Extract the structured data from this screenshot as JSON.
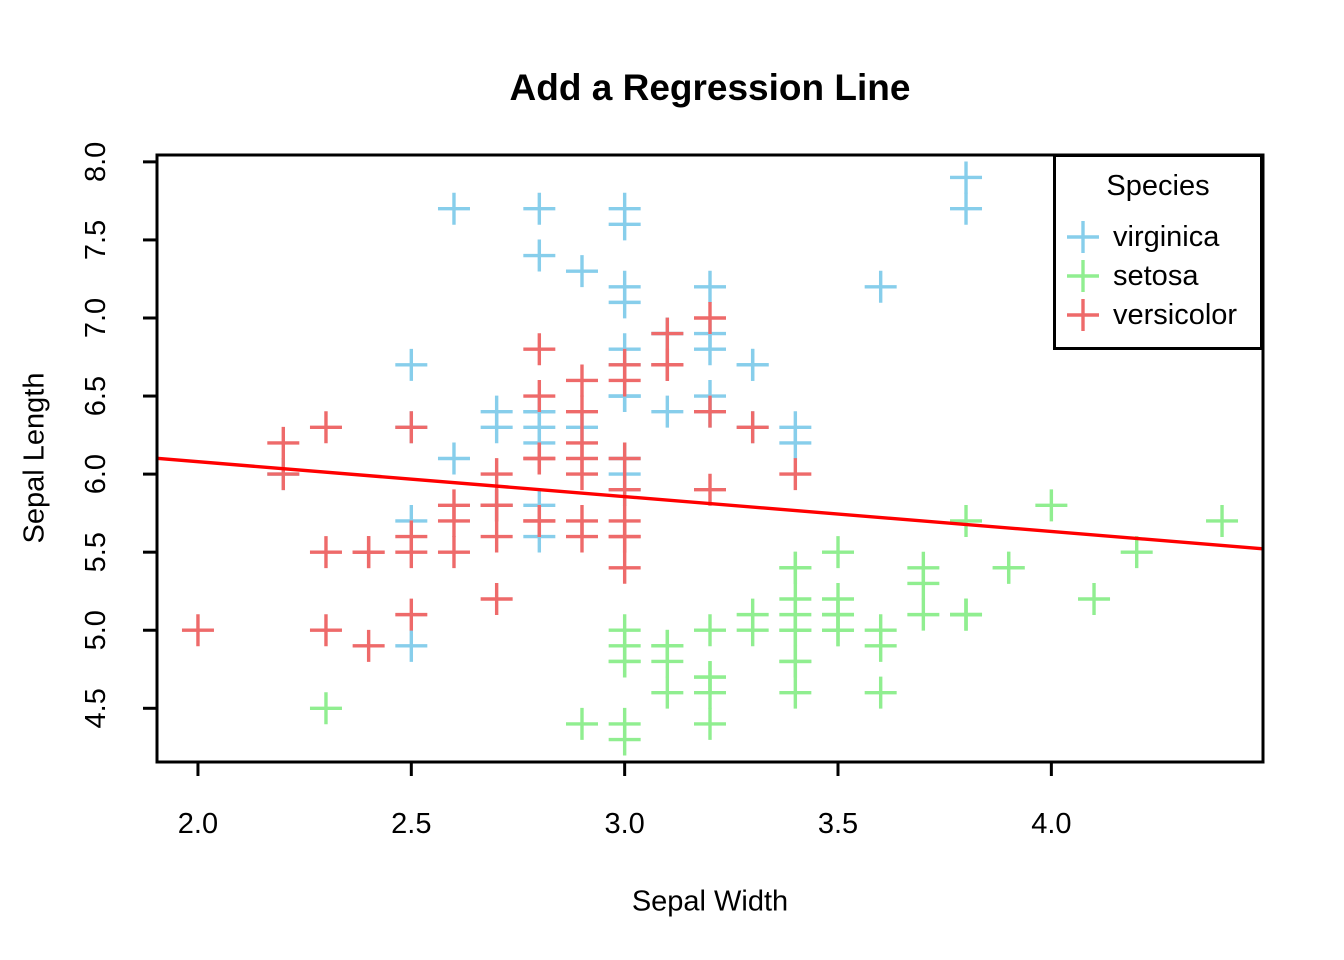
{
  "figure": {
    "title": "Add a Regression Line",
    "x_axis_label": "Sepal Width",
    "y_axis_label": "Sepal Length"
  },
  "colors": {
    "virginica": "#87CEEB",
    "setosa": "#90EE90",
    "versicolor": "#EE6A6A",
    "regression_line": "#FF0000",
    "axis": "#000000",
    "background": "#FFFFFF"
  },
  "legend": {
    "title": "Species",
    "position": "topright",
    "items": [
      {
        "label": "virginica",
        "marker": "plus",
        "color": "#87CEEB"
      },
      {
        "label": "setosa",
        "marker": "plus",
        "color": "#90EE90"
      },
      {
        "label": "versicolor",
        "marker": "plus",
        "color": "#EE6A6A"
      }
    ]
  },
  "chart_data": {
    "type": "scatter",
    "title": "Add a Regression Line",
    "xlabel": "Sepal Width",
    "ylabel": "Sepal Length",
    "xlim": [
      1.904,
      4.496
    ],
    "ylim": [
      4.156,
      8.044
    ],
    "x_ticks": [
      2.0,
      2.5,
      3.0,
      3.5,
      4.0
    ],
    "x_tick_labels": [
      "2.0",
      "2.5",
      "3.0",
      "3.5",
      "4.0"
    ],
    "y_ticks": [
      4.5,
      5.0,
      5.5,
      6.0,
      6.5,
      7.0,
      7.5,
      8.0
    ],
    "y_tick_labels": [
      "4.5",
      "5.0",
      "5.5",
      "6.0",
      "6.5",
      "7.0",
      "7.5",
      "8.0"
    ],
    "grid": false,
    "marker": "plus",
    "legend_position": "topright",
    "series": [
      {
        "name": "virginica",
        "color": "#87CEEB",
        "x": [
          3.3,
          2.7,
          3.0,
          2.9,
          3.0,
          3.0,
          2.5,
          2.9,
          2.5,
          3.6,
          3.2,
          2.7,
          3.0,
          2.5,
          2.8,
          3.2,
          3.0,
          3.8,
          2.6,
          2.2,
          3.2,
          2.8,
          2.8,
          2.7,
          3.3,
          3.2,
          2.8,
          3.0,
          2.8,
          3.0,
          2.8,
          3.8,
          2.8,
          2.8,
          2.6,
          3.0,
          3.4,
          3.1,
          3.0,
          3.1,
          3.1,
          3.1,
          2.7,
          3.2,
          3.3,
          3.0,
          2.5,
          3.0,
          3.4,
          3.0
        ],
        "y": [
          6.3,
          5.8,
          7.1,
          6.3,
          6.5,
          7.6,
          4.9,
          7.3,
          6.7,
          7.2,
          6.5,
          6.4,
          6.8,
          5.7,
          5.8,
          6.4,
          6.5,
          7.7,
          7.7,
          6.0,
          6.9,
          5.6,
          7.7,
          6.3,
          6.7,
          7.2,
          6.2,
          6.1,
          6.4,
          7.2,
          7.4,
          7.9,
          6.4,
          6.3,
          6.1,
          7.7,
          6.3,
          6.4,
          6.0,
          6.9,
          6.7,
          6.9,
          5.8,
          6.8,
          6.7,
          6.7,
          6.3,
          6.5,
          6.2,
          5.9
        ]
      },
      {
        "name": "setosa",
        "color": "#90EE90",
        "x": [
          3.5,
          3.0,
          3.2,
          3.1,
          3.6,
          3.9,
          3.4,
          3.4,
          2.9,
          3.1,
          3.7,
          3.4,
          3.0,
          3.0,
          4.0,
          4.4,
          3.9,
          3.5,
          3.8,
          3.8,
          3.4,
          3.7,
          3.6,
          3.3,
          3.4,
          3.0,
          3.4,
          3.5,
          3.4,
          3.2,
          3.1,
          3.4,
          4.1,
          4.2,
          3.1,
          3.2,
          3.5,
          3.6,
          3.0,
          3.4,
          3.5,
          2.3,
          3.2,
          3.5,
          3.8,
          3.0,
          3.8,
          3.2,
          3.7,
          3.3
        ],
        "y": [
          5.1,
          4.9,
          4.7,
          4.6,
          5.0,
          5.4,
          4.6,
          5.0,
          4.4,
          4.9,
          5.4,
          4.8,
          4.8,
          4.3,
          5.8,
          5.7,
          5.4,
          5.1,
          5.7,
          5.1,
          5.4,
          5.1,
          4.6,
          5.1,
          4.8,
          5.0,
          5.0,
          5.2,
          5.2,
          4.7,
          4.8,
          5.4,
          5.2,
          5.5,
          4.9,
          5.0,
          5.5,
          4.9,
          4.4,
          5.1,
          5.0,
          4.5,
          4.4,
          5.0,
          5.1,
          4.8,
          5.1,
          4.6,
          5.3,
          5.0
        ]
      },
      {
        "name": "versicolor",
        "color": "#EE6A6A",
        "x": [
          3.2,
          3.2,
          3.1,
          2.3,
          2.8,
          2.8,
          3.3,
          2.4,
          2.9,
          2.7,
          2.0,
          3.0,
          2.2,
          2.9,
          2.9,
          3.1,
          3.0,
          2.7,
          2.2,
          2.5,
          3.2,
          2.8,
          2.5,
          2.8,
          2.9,
          3.0,
          2.8,
          3.0,
          2.9,
          2.6,
          2.4,
          2.4,
          2.7,
          2.7,
          3.0,
          3.4,
          3.1,
          2.3,
          3.0,
          2.5,
          2.6,
          3.0,
          2.6,
          2.3,
          2.7,
          3.0,
          2.9,
          2.9,
          2.5,
          2.8
        ],
        "y": [
          7.0,
          6.4,
          6.9,
          5.5,
          6.5,
          5.7,
          6.3,
          4.9,
          6.6,
          5.2,
          5.0,
          5.9,
          6.0,
          6.1,
          5.6,
          6.7,
          5.6,
          5.8,
          6.2,
          5.6,
          5.9,
          6.1,
          6.3,
          6.1,
          6.4,
          6.6,
          6.8,
          6.7,
          6.0,
          5.7,
          5.5,
          5.5,
          5.8,
          6.0,
          5.4,
          6.0,
          6.7,
          6.3,
          5.6,
          5.5,
          5.5,
          6.1,
          5.8,
          5.0,
          5.6,
          5.7,
          5.7,
          6.2,
          5.1,
          5.7
        ]
      }
    ],
    "regression_line": {
      "slope": -0.2234,
      "intercept": 6.5262,
      "color": "#FF0000"
    }
  }
}
